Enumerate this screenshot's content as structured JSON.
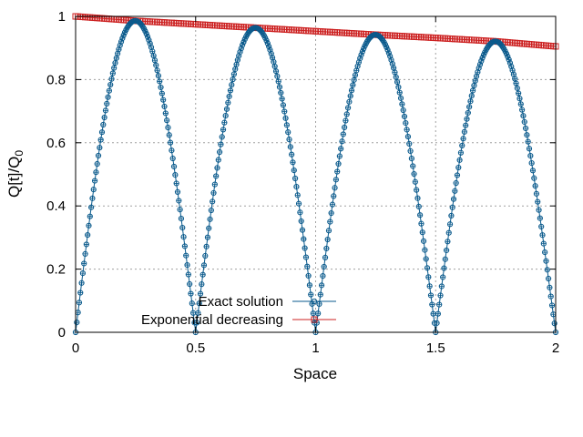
{
  "chart_data": {
    "type": "line",
    "title": "",
    "xlabel": "Space",
    "ylabel": "Q[t]/Q",
    "ylabel_subscript": "0",
    "xlim": [
      0,
      2
    ],
    "ylim": [
      0,
      1
    ],
    "xticks": [
      0,
      0.5,
      1,
      1.5,
      2
    ],
    "yticks": [
      0,
      0.2,
      0.4,
      0.6,
      0.8,
      1
    ],
    "xtick_labels": [
      "0",
      "0.5",
      "1",
      "1.5",
      "2"
    ],
    "ytick_labels": [
      "0",
      "0.2",
      "0.4",
      "0.6",
      "0.8",
      "1"
    ],
    "grid": true,
    "legend_position": "bottom-center",
    "series": [
      {
        "name": "Exact solution",
        "color": "#0a5a8c",
        "marker": "circle-plus",
        "x": [
          0,
          0.0625,
          0.125,
          0.1875,
          0.25,
          0.3125,
          0.375,
          0.4375,
          0.5,
          0.5625,
          0.625,
          0.6875,
          0.75,
          0.8125,
          0.875,
          0.9375,
          1.0,
          1.0625,
          1.125,
          1.1875,
          1.25,
          1.3125,
          1.375,
          1.4375,
          1.5,
          1.5625,
          1.625,
          1.6875,
          1.75,
          1.8125,
          1.875,
          1.9375,
          2.0
        ],
        "y": [
          0.0,
          0.377,
          0.697,
          0.911,
          0.986,
          0.911,
          0.697,
          0.377,
          0.0,
          0.369,
          0.682,
          0.891,
          0.964,
          0.891,
          0.682,
          0.369,
          0.0,
          0.361,
          0.666,
          0.871,
          0.942,
          0.871,
          0.666,
          0.361,
          0.0,
          0.353,
          0.652,
          0.851,
          0.921,
          0.851,
          0.652,
          0.353,
          0.0
        ]
      },
      {
        "name": "Exponential decreasing",
        "color": "#cc2020",
        "marker": "square",
        "x": [
          0,
          0.25,
          0.5,
          0.75,
          1.0,
          1.25,
          1.5,
          1.75,
          2.0
        ],
        "y": [
          1.0,
          0.986,
          0.975,
          0.964,
          0.953,
          0.942,
          0.932,
          0.921,
          0.905
        ]
      }
    ]
  }
}
